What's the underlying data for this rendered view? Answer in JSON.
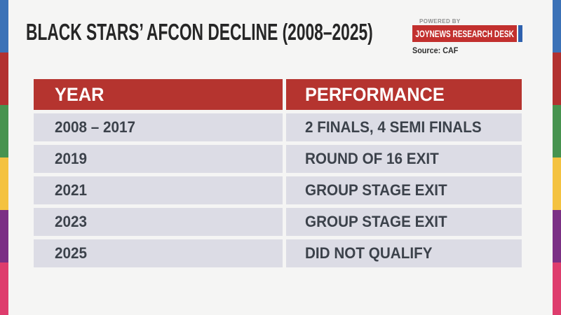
{
  "chart_data": {
    "type": "table",
    "title": "BLACK STARS’ AFCON DECLINE (2008–2025)",
    "columns": [
      "YEAR",
      "PERFORMANCE"
    ],
    "rows": [
      [
        "2008 – 2017",
        "2 FINALS, 4 SEMI FINALS"
      ],
      [
        "2019",
        "ROUND OF 16 EXIT"
      ],
      [
        "2021",
        "GROUP STAGE EXIT"
      ],
      [
        "2023",
        "GROUP STAGE EXIT"
      ],
      [
        "2025",
        "DID NOT QUALIFY"
      ]
    ],
    "source": "Source: CAF"
  },
  "branding": {
    "powered_by": "POWERED BY",
    "badge_label": "JOYNEWS RESEARCH DESK",
    "source": "Source: CAF",
    "badge_bg": "#c2302e",
    "badge_accent": "#2e61ae"
  },
  "colors": {
    "page_bg": "#f5f5f4",
    "header_bg": "#b5342f",
    "row_bg": "#dcdce5",
    "title_color": "#262626",
    "cell_text": "#3c424b"
  },
  "stripes": {
    "colors": [
      "#3c72b7",
      "#b23130",
      "#47934f",
      "#f4c240",
      "#7b3085",
      "#de3d6d"
    ]
  }
}
